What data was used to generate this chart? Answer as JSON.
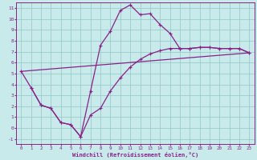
{
  "xlabel": "Windchill (Refroidissement éolien,°C)",
  "bg_color": "#c8eaea",
  "line_color": "#882288",
  "grid_color": "#99cccc",
  "xlim": [
    -0.5,
    23.5
  ],
  "ylim": [
    -1.5,
    11.5
  ],
  "xticks": [
    0,
    1,
    2,
    3,
    4,
    5,
    6,
    7,
    8,
    9,
    10,
    11,
    12,
    13,
    14,
    15,
    16,
    17,
    18,
    19,
    20,
    21,
    22,
    23
  ],
  "yticks": [
    -1,
    0,
    1,
    2,
    3,
    4,
    5,
    6,
    7,
    8,
    9,
    10,
    11
  ],
  "line1_x": [
    0,
    1,
    2,
    3,
    4,
    5,
    6,
    7,
    8,
    9,
    10,
    11,
    12,
    13,
    14,
    15,
    16,
    17,
    18,
    19,
    20,
    21,
    22,
    23
  ],
  "line1_y": [
    5.2,
    3.7,
    2.1,
    1.8,
    0.5,
    0.3,
    -0.8,
    3.4,
    7.6,
    8.9,
    10.8,
    11.3,
    10.4,
    10.5,
    9.5,
    8.7,
    7.3,
    7.3,
    7.4,
    7.4,
    7.3,
    7.3,
    7.3,
    6.9
  ],
  "line2_x": [
    1,
    2,
    3,
    4,
    5,
    6,
    7,
    8,
    9,
    10,
    11,
    12,
    13,
    14,
    15,
    16,
    17,
    18,
    19,
    20,
    21,
    22,
    23
  ],
  "line2_y": [
    3.7,
    2.1,
    1.8,
    0.5,
    0.3,
    -0.8,
    1.2,
    1.8,
    3.4,
    4.6,
    5.6,
    6.3,
    6.8,
    7.1,
    7.3,
    7.3,
    7.3,
    7.4,
    7.4,
    7.3,
    7.3,
    7.3,
    6.9
  ],
  "line3_x": [
    0,
    23
  ],
  "line3_y": [
    5.2,
    6.9
  ]
}
